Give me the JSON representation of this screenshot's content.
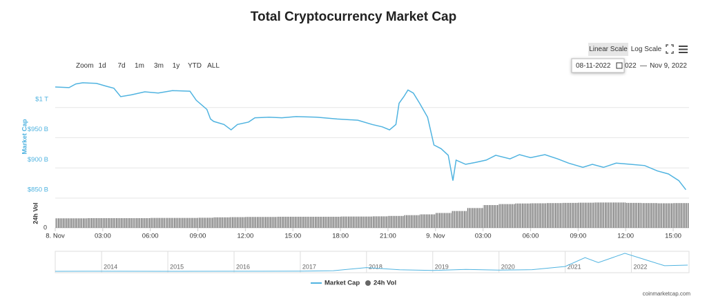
{
  "chart_data": {
    "type": "line",
    "title": "Total Cryptocurrency Market Cap",
    "y_label": "Market Cap",
    "y2_label": "24h Vol",
    "xlim": [
      0,
      40
    ],
    "xticks": [
      {
        "value": 0,
        "label": "8. Nov"
      },
      {
        "value": 3,
        "label": "03:00"
      },
      {
        "value": 6,
        "label": "06:00"
      },
      {
        "value": 9,
        "label": "09:00"
      },
      {
        "value": 12,
        "label": "12:00"
      },
      {
        "value": 15,
        "label": "15:00"
      },
      {
        "value": 18,
        "label": "18:00"
      },
      {
        "value": 21,
        "label": "21:00"
      },
      {
        "value": 24,
        "label": "9. Nov"
      },
      {
        "value": 27,
        "label": "03:00"
      },
      {
        "value": 30,
        "label": "06:00"
      },
      {
        "value": 33,
        "label": "09:00"
      },
      {
        "value": 36,
        "label": "12:00"
      },
      {
        "value": 39,
        "label": "15:00"
      }
    ],
    "ylim": [
      850,
      1050
    ],
    "yticks": [
      {
        "value": 850,
        "label": "$850 B"
      },
      {
        "value": 900,
        "label": "$900 B"
      },
      {
        "value": 950,
        "label": "$950 B"
      },
      {
        "value": 1000,
        "label": "$1 T"
      }
    ],
    "y2lim": [
      0,
      150
    ],
    "y2ticks": [
      0
    ],
    "grid": true,
    "series": [
      {
        "name": "Market Cap",
        "color": "#4fb3e0",
        "x": [
          0,
          0.87,
          1.3,
          1.74,
          2.6,
          3.26,
          3.7,
          4.13,
          4.8,
          5.65,
          6.5,
          7.4,
          8.5,
          8.9,
          9.57,
          9.8,
          10,
          10.65,
          11.1,
          11.5,
          12.2,
          12.6,
          13.5,
          14.3,
          15.2,
          16.5,
          17.8,
          19.1,
          20,
          20.65,
          21.1,
          21.5,
          21.7,
          22,
          22.26,
          22.6,
          23,
          23.5,
          23.9,
          24.35,
          24.8,
          25.1,
          25.3,
          25.9,
          26.5,
          27.2,
          27.8,
          28.7,
          29.3,
          30,
          30.9,
          31.7,
          32.4,
          33.3,
          33.9,
          34.6,
          35.4,
          36.3,
          37.2,
          38,
          38.7,
          39.35,
          39.8
        ],
        "values": [
          1034,
          1033,
          1039,
          1041,
          1040,
          1035,
          1032,
          1018,
          1021,
          1026,
          1024,
          1028,
          1027,
          1012,
          997,
          981,
          977,
          972,
          963,
          972,
          976,
          983,
          984,
          983,
          985,
          984,
          981,
          979,
          972,
          968,
          963,
          972,
          1007,
          1018,
          1029,
          1024,
          1007,
          984,
          938,
          932,
          921,
          879,
          913,
          906,
          909,
          913,
          921,
          915,
          922,
          917,
          922,
          915,
          908,
          901,
          906,
          901,
          908,
          906,
          904,
          895,
          890,
          879,
          864
        ]
      },
      {
        "name": "24h Vol",
        "color": "#666666",
        "type": "bar",
        "axis": "y2",
        "x": [
          0.5,
          1.5,
          2.5,
          3.5,
          4.5,
          5.5,
          6.5,
          7.5,
          8.5,
          9.5,
          10.5,
          11.5,
          12.5,
          13.5,
          14.5,
          15.5,
          16.5,
          17.5,
          18.5,
          19.5,
          20.5,
          21.5,
          22.5,
          23.5,
          24.5,
          25.5,
          26.5,
          27.5,
          28.5,
          29.5,
          30.5,
          31.5,
          32.5,
          33.5,
          34.5,
          35.5,
          36.5,
          37.5,
          38.5,
          39.5
        ],
        "values": [
          48,
          48,
          49,
          49,
          49,
          49,
          50,
          50,
          50,
          51,
          53,
          54,
          55,
          55,
          56,
          56,
          56,
          56,
          57,
          57,
          58,
          60,
          64,
          68,
          75,
          85,
          100,
          115,
          120,
          123,
          124,
          125,
          126,
          127,
          128,
          128,
          126,
          125,
          124,
          125
        ]
      }
    ],
    "navigator": {
      "xlim": [
        2013.3,
        2022.87
      ],
      "ylim": [
        0,
        3000
      ],
      "xticks": [
        2014,
        2015,
        2016,
        2017,
        2018,
        2019,
        2020,
        2021,
        2022
      ],
      "x": [
        2013.3,
        2014,
        2015,
        2016,
        2017,
        2017.5,
        2018,
        2018.5,
        2019,
        2019.5,
        2020,
        2020.5,
        2021,
        2021.3,
        2021.5,
        2021.9,
        2022.2,
        2022.5,
        2022.85
      ],
      "values": [
        1,
        10,
        5,
        7,
        18,
        100,
        600,
        250,
        130,
        300,
        200,
        270,
        780,
        2200,
        1400,
        2900,
        1900,
        900,
        1000
      ]
    },
    "controls": {
      "zoom_label": "Zoom",
      "zoom": [
        "1d",
        "7d",
        "1m",
        "3m",
        "1y",
        "YTD",
        "ALL"
      ],
      "scales": [
        "Linear Scale",
        "Log Scale"
      ],
      "date_from": "08-11-2022",
      "date_from_tail": "022",
      "date_sep": "—",
      "date_to": "Nov 9, 2022"
    },
    "credit": "coinmarketcap.com"
  }
}
